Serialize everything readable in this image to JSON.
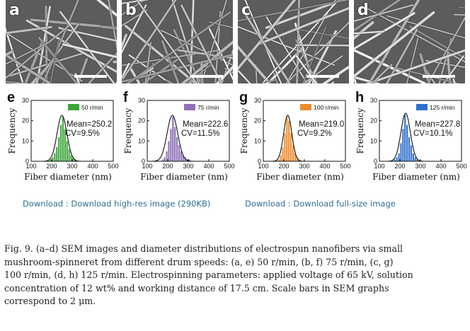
{
  "panels": [
    {
      "sem_label": "a",
      "hist_label": "e",
      "speed": "50 r/min",
      "mean_text": "Mean=250.2",
      "cv_text": "CV=9.5%",
      "color": "#3aa63a",
      "mean": 250.2,
      "sd": 24
    },
    {
      "sem_label": "b",
      "hist_label": "f",
      "speed": "75 r/min",
      "mean_text": "Mean=222.6",
      "cv_text": "CV=11.5%",
      "color": "#8e6fb8",
      "mean": 222.6,
      "sd": 26
    },
    {
      "sem_label": "c",
      "hist_label": "g",
      "speed": "100 r/min",
      "mean_text": "Mean=219.0",
      "cv_text": "CV=9.2%",
      "color": "#ef8c2b",
      "mean": 219.0,
      "sd": 20
    },
    {
      "sem_label": "d",
      "hist_label": "h",
      "speed": "125 r/min",
      "mean_text": "Mean=227.8",
      "cv_text": "CV=10.1%",
      "color": "#2f6fd0",
      "mean": 227.8,
      "sd": 23
    }
  ],
  "chart_data": {
    "type": "bar",
    "xlabel": "Fiber diameter (nm)",
    "ylabel": "Frequency",
    "xticks": [
      "100",
      "200",
      "300",
      "400",
      "500"
    ],
    "yticks": [
      "0",
      "10",
      "20",
      "30"
    ],
    "xlim": [
      100,
      500
    ],
    "ylim": [
      0,
      30
    ],
    "bin_centers": [
      165,
      175,
      185,
      195,
      205,
      215,
      225,
      235,
      245,
      255,
      265,
      275,
      285,
      295,
      305,
      315,
      325
    ],
    "series": [
      {
        "name": "50 r/min",
        "values": [
          0,
          0,
          0,
          1,
          2,
          4,
          7,
          12,
          18,
          22,
          16,
          10,
          6,
          3,
          2,
          1,
          0
        ]
      },
      {
        "name": "75 r/min",
        "values": [
          0,
          1,
          2,
          5,
          10,
          16,
          22,
          17,
          12,
          8,
          5,
          3,
          2,
          1,
          1,
          0,
          0
        ]
      },
      {
        "name": "100 r/min",
        "values": [
          0,
          1,
          3,
          7,
          14,
          22,
          20,
          14,
          8,
          4,
          2,
          1,
          0,
          0,
          0,
          0,
          0
        ]
      },
      {
        "name": "125 r/min",
        "values": [
          0,
          1,
          2,
          4,
          9,
          16,
          23,
          18,
          12,
          8,
          4,
          2,
          1,
          0,
          0,
          0,
          0
        ]
      }
    ]
  },
  "links": {
    "left": "Download : Download high-res image (290KB)",
    "right": "Download : Download full-size image"
  },
  "caption": {
    "line1": "Fig. 9. (a–d) SEM images and diameter distributions of electrospun nanofibers via small",
    "line2": "mushroom-spinneret from different drum speeds: (a, e) 50 r/min, (b, f) 75 r/min, (c, g)",
    "line3": "100 r/min, (d, h) 125 r/min. Electrospinning parameters: applied voltage of 65 kV, solution",
    "line4": "concentration of 12 wt% and working distance of 17.5 cm. Scale bars in SEM graphs",
    "line5": "correspond to 2 μm."
  }
}
